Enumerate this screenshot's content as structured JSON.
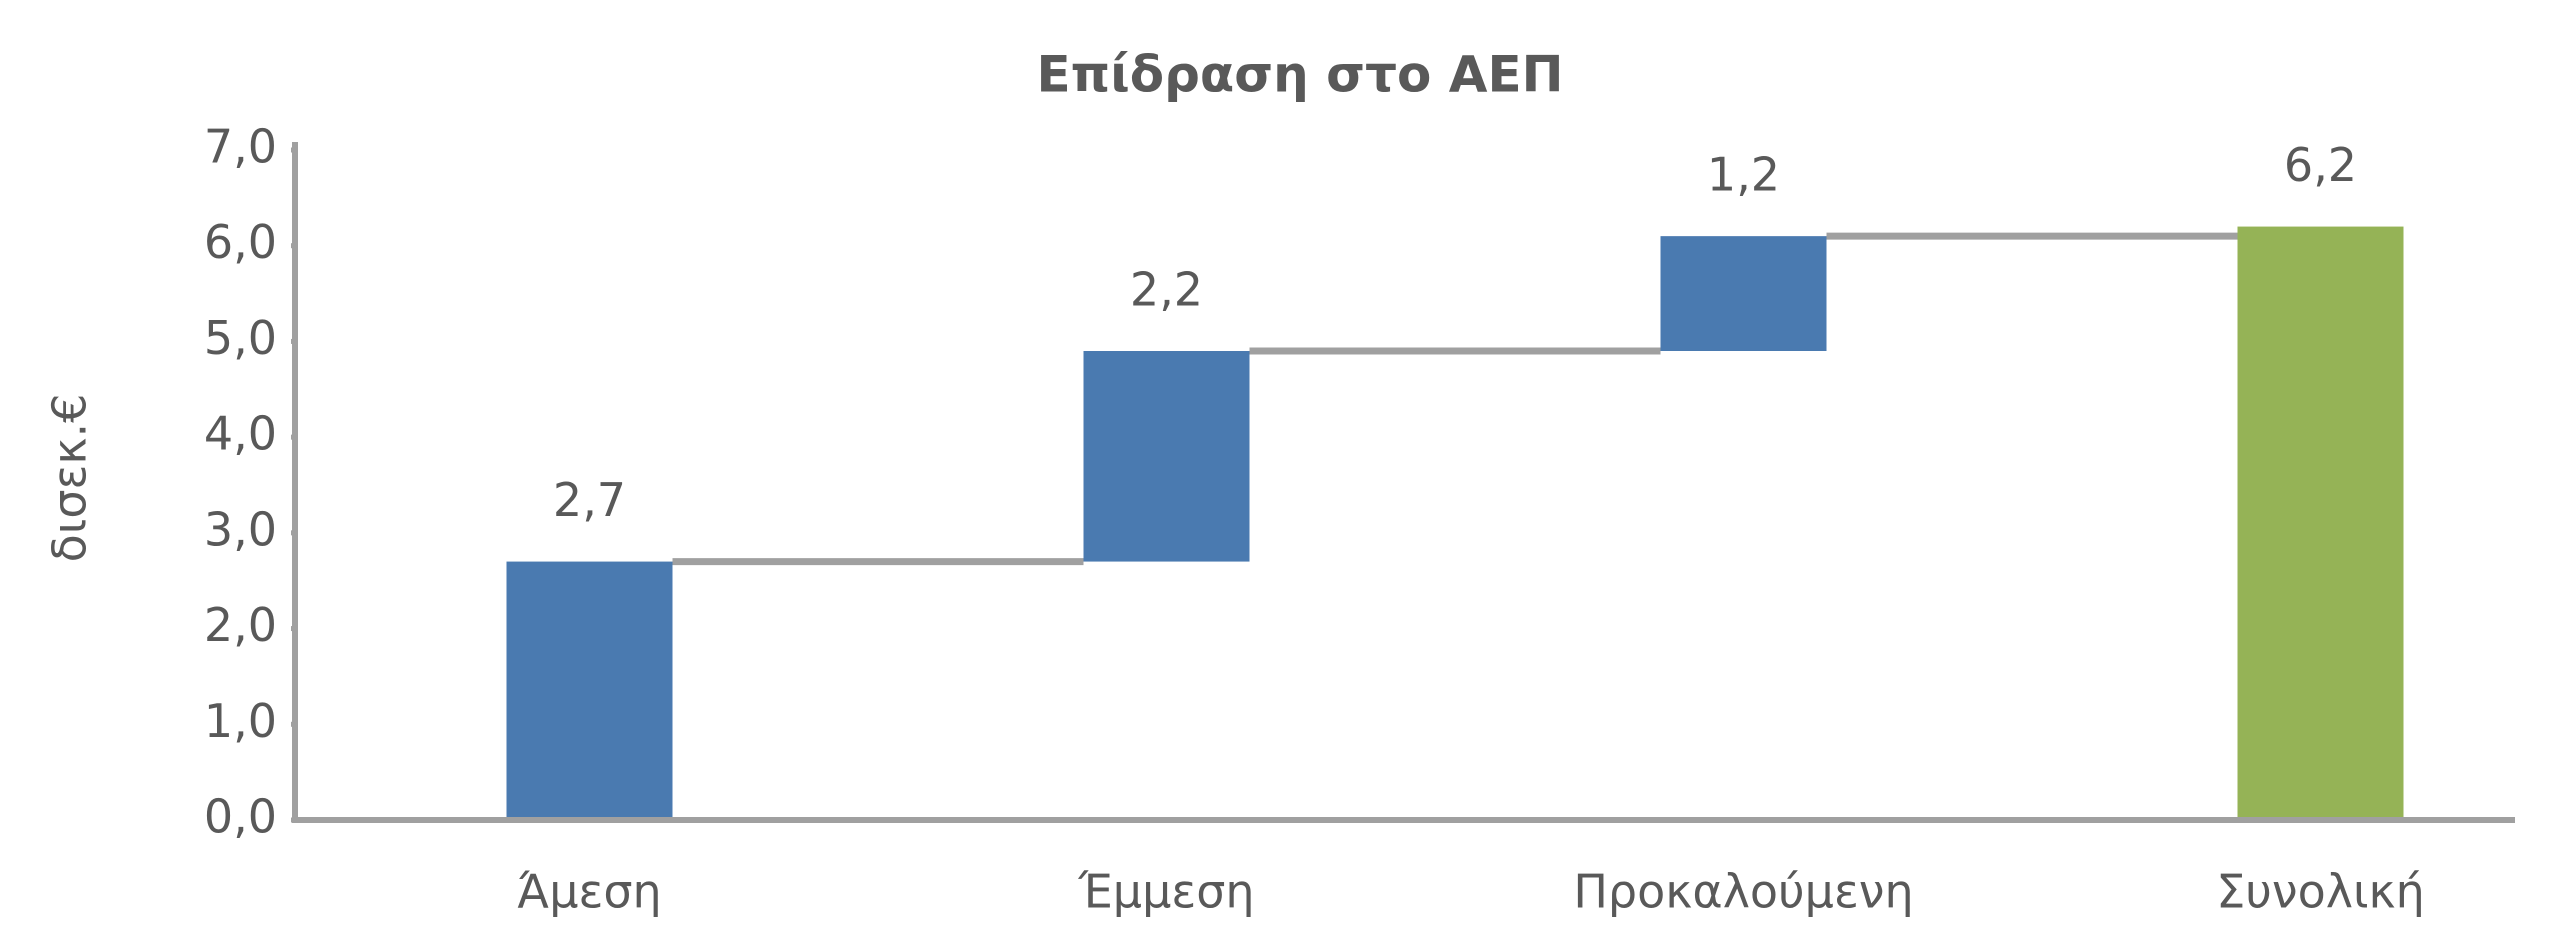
{
  "chart_data": {
    "type": "waterfall",
    "title": "Επίδραση στο ΑΕΠ",
    "ylabel": "δισεκ.€",
    "categories": [
      "Άμεση",
      "Έμμεση",
      "Προκαλούμενη",
      "Συνολική"
    ],
    "values": [
      2.7,
      2.2,
      1.2,
      6.2
    ],
    "value_labels": [
      "2,7",
      "2,2",
      "1,2",
      "6,2"
    ],
    "measure": [
      "relative",
      "relative",
      "relative",
      "total"
    ],
    "colors": [
      "#4a7ab0",
      "#4a7ab0",
      "#4a7ab0",
      "#95b356"
    ],
    "connector_color": "#a0a0a0",
    "ylim": [
      0,
      7
    ],
    "yticks": [
      {
        "value": 0,
        "label": "0,0"
      },
      {
        "value": 1,
        "label": "1,0"
      },
      {
        "value": 2,
        "label": "2,0"
      },
      {
        "value": 3,
        "label": "3,0"
      },
      {
        "value": 4,
        "label": "4,0"
      },
      {
        "value": 5,
        "label": "5,0"
      },
      {
        "value": 6,
        "label": "6,0"
      },
      {
        "value": 7,
        "label": "7,0"
      }
    ],
    "grid": false
  }
}
